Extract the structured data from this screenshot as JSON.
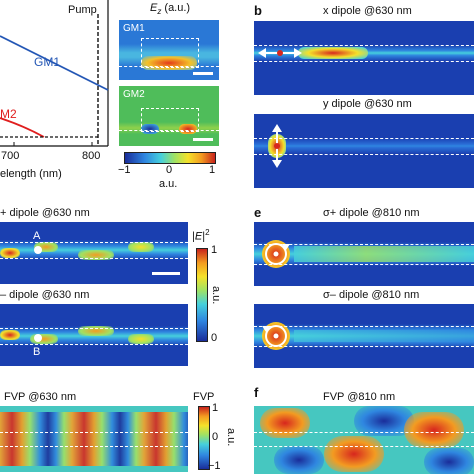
{
  "panel_a": {
    "pump_label": "Pump",
    "series": [
      {
        "name": "GM1",
        "color": "#2457b5"
      },
      {
        "name": "M2",
        "color": "#e01e1e"
      }
    ],
    "xticks": [
      "700",
      "800"
    ],
    "xlabel": "elength (nm)"
  },
  "panel_a_insets": {
    "title": "E",
    "title_sub": "z",
    "title_unit": "(a.u.)",
    "gm1_label": "GM1",
    "gm2_label": "GM2",
    "colorbar_ticks": [
      "−1",
      "0",
      "1"
    ],
    "colorbar_unit": "a.u."
  },
  "panel_b": {
    "letter": "b",
    "top_title": "x dipole @630 nm",
    "bottom_title": "y dipole @630 nm"
  },
  "panel_d": {
    "top_title": "+ dipole @630 nm",
    "bottom_title": "– dipole @630 nm",
    "point_a": "A",
    "point_b": "B",
    "colorbar_title": "|E|",
    "colorbar_sup": "2",
    "colorbar_ticks": [
      "1",
      "0"
    ],
    "colorbar_unit": "a.u."
  },
  "panel_e": {
    "letter": "e",
    "top_title_sigma": "σ+ dipole @810 nm",
    "bottom_title_sigma": "σ– dipole @810 nm"
  },
  "panel_c": {
    "title": "FVP @630 nm",
    "colorbar_title": "FVP",
    "colorbar_ticks": [
      "1",
      "0",
      "−1"
    ],
    "colorbar_unit": "a.u."
  },
  "panel_f": {
    "letter": "f",
    "title": "FVP @810 nm"
  },
  "colors": {
    "field_bg": "#1a3fb0",
    "jet_red": "#d7261e",
    "jet_yellow": "#f5e12a",
    "jet_cyan": "#3cc7d8",
    "frame": "#111111"
  }
}
